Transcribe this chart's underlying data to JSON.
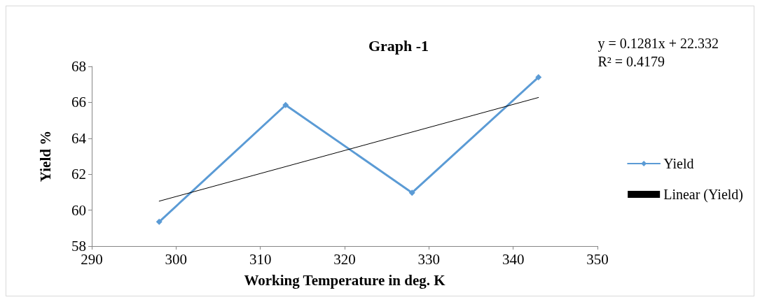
{
  "chart_data": {
    "type": "line",
    "title": "Graph -1",
    "xlabel": "Working Temperature in deg. K",
    "ylabel": "Yield %",
    "annotations": [
      "y = 0.1281x + 22.332\nR² = 0.4179"
    ],
    "xlim": [
      290,
      350
    ],
    "xticks": [
      290,
      300,
      310,
      320,
      330,
      340,
      350
    ],
    "ylim": [
      58,
      68
    ],
    "yticks": [
      58,
      60,
      62,
      64,
      66,
      68
    ],
    "grid": false,
    "legend": "right",
    "series": [
      {
        "name": "Yield",
        "color": "#5b9bd5",
        "x": [
          298,
          313,
          328,
          343
        ],
        "values": [
          59.35,
          65.85,
          60.97,
          67.4
        ],
        "marker": "diamond",
        "line_style": "solid"
      },
      {
        "name": "Linear (Yield)",
        "color": "#000000",
        "x": [
          298,
          343
        ],
        "values": [
          60.5,
          66.27
        ],
        "marker": "none",
        "line_style": "solid"
      }
    ]
  }
}
